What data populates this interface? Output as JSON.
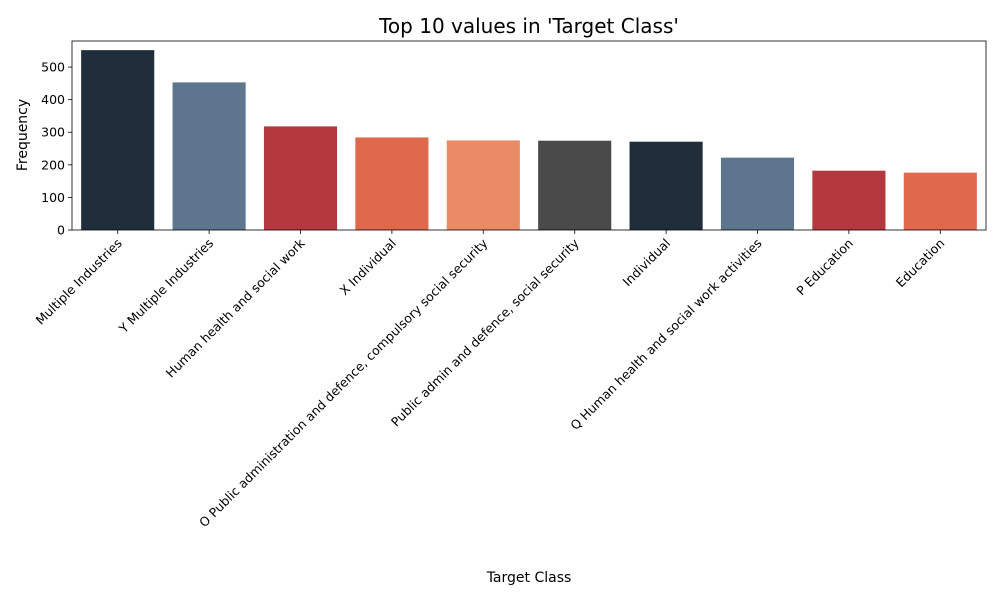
{
  "chart_data": {
    "type": "bar",
    "title": "Top 10 values in 'Target Class'",
    "xlabel": "Target Class",
    "ylabel": "Frequency",
    "ylim": [
      0,
      580
    ],
    "yticks": [
      0,
      100,
      200,
      300,
      400,
      500
    ],
    "grid": false,
    "categories": [
      "Multiple Industries",
      "Y Multiple Industries",
      "Human health and social work",
      "X Individual",
      "O Public administration and defence, compulsory social security",
      "Public admin and defence, social security",
      "Individual",
      "Q Human health and social work activities",
      "P Education",
      "Education"
    ],
    "values": [
      552,
      453,
      318,
      284,
      275,
      274,
      271,
      222,
      182,
      176
    ],
    "colors": [
      "#202e3c",
      "#5d758d",
      "#b5383f",
      "#e0694c",
      "#eb8b65",
      "#4a4a4a",
      "#202e3c",
      "#5d758d",
      "#b5383f",
      "#e0694c"
    ]
  }
}
